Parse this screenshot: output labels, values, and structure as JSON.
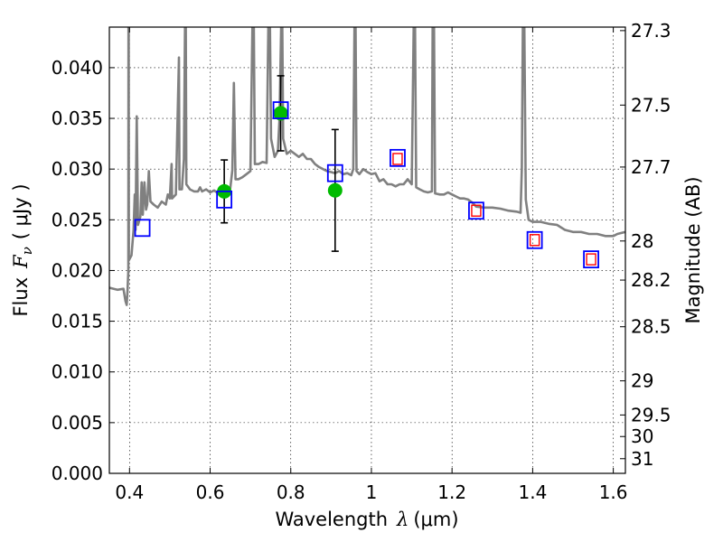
{
  "chart_data": {
    "type": "scatter",
    "xlabel": "Wavelength",
    "xlabel_symbol": "λ",
    "xlabel_unit": "(μm)",
    "ylabel": "Flux",
    "ylabel_symbol": "F",
    "ylabel_subscript": "ν",
    "ylabel_unit": "( μJy )",
    "y2label": "Magnitude (AB)",
    "xlim": [
      0.35,
      1.63
    ],
    "ylim": [
      0.0,
      0.044
    ],
    "grid": true,
    "x_ticks": [
      {
        "value": 0.4,
        "label": "0.4"
      },
      {
        "value": 0.6,
        "label": "0.6"
      },
      {
        "value": 0.8,
        "label": "0.8"
      },
      {
        "value": 1.0,
        "label": "1"
      },
      {
        "value": 1.2,
        "label": "1.2"
      },
      {
        "value": 1.4,
        "label": "1.4"
      },
      {
        "value": 1.6,
        "label": "1.6"
      }
    ],
    "y_ticks": [
      {
        "value": 0.0,
        "label": "0.000"
      },
      {
        "value": 0.005,
        "label": "0.005"
      },
      {
        "value": 0.01,
        "label": "0.010"
      },
      {
        "value": 0.015,
        "label": "0.015"
      },
      {
        "value": 0.02,
        "label": "0.020"
      },
      {
        "value": 0.025,
        "label": "0.025"
      },
      {
        "value": 0.03,
        "label": "0.030"
      },
      {
        "value": 0.035,
        "label": "0.035"
      },
      {
        "value": 0.04,
        "label": "0.040"
      }
    ],
    "y2_ticks": [
      {
        "mag": 27.3,
        "label": "27.3"
      },
      {
        "mag": 27.5,
        "label": "27.5"
      },
      {
        "mag": 27.7,
        "label": "27.7"
      },
      {
        "mag": 28.0,
        "label": "28"
      },
      {
        "mag": 28.2,
        "label": "28.2"
      },
      {
        "mag": 28.5,
        "label": "28.5"
      },
      {
        "mag": 29.0,
        "label": "29"
      },
      {
        "mag": 29.5,
        "label": "29.5"
      },
      {
        "mag": 30.0,
        "label": "30"
      },
      {
        "mag": 31.0,
        "label": "31"
      }
    ],
    "model_spectrum": {
      "color": "#808080",
      "points": [
        [
          0.35,
          0.0183
        ],
        [
          0.37,
          0.0181
        ],
        [
          0.385,
          0.0182
        ],
        [
          0.39,
          0.017
        ],
        [
          0.393,
          0.0166
        ],
        [
          0.395,
          0.018
        ],
        [
          0.397,
          0.02
        ],
        [
          0.3975,
          0.046
        ],
        [
          0.398,
          0.046
        ],
        [
          0.3985,
          0.021
        ],
        [
          0.405,
          0.0215
        ],
        [
          0.41,
          0.024
        ],
        [
          0.413,
          0.0275
        ],
        [
          0.415,
          0.024
        ],
        [
          0.418,
          0.0352
        ],
        [
          0.421,
          0.0245
        ],
        [
          0.427,
          0.0253
        ],
        [
          0.43,
          0.0287
        ],
        [
          0.433,
          0.0255
        ],
        [
          0.437,
          0.0287
        ],
        [
          0.441,
          0.026
        ],
        [
          0.444,
          0.0265
        ],
        [
          0.448,
          0.0298
        ],
        [
          0.452,
          0.0268
        ],
        [
          0.46,
          0.0265
        ],
        [
          0.47,
          0.0262
        ],
        [
          0.48,
          0.0268
        ],
        [
          0.49,
          0.0265
        ],
        [
          0.495,
          0.0275
        ],
        [
          0.5,
          0.0271
        ],
        [
          0.5045,
          0.0305
        ],
        [
          0.5055,
          0.0271
        ],
        [
          0.515,
          0.0275
        ],
        [
          0.5225,
          0.041
        ],
        [
          0.524,
          0.028
        ],
        [
          0.53,
          0.028
        ],
        [
          0.535,
          0.031
        ],
        [
          0.538,
          0.046
        ],
        [
          0.5395,
          0.046
        ],
        [
          0.541,
          0.0285
        ],
        [
          0.55,
          0.028
        ],
        [
          0.56,
          0.0278
        ],
        [
          0.57,
          0.0278
        ],
        [
          0.575,
          0.0282
        ],
        [
          0.58,
          0.0278
        ],
        [
          0.59,
          0.028
        ],
        [
          0.6,
          0.0277
        ],
        [
          0.61,
          0.0279
        ],
        [
          0.62,
          0.0276
        ],
        [
          0.63,
          0.0278
        ],
        [
          0.64,
          0.0276
        ],
        [
          0.65,
          0.0281
        ],
        [
          0.655,
          0.0299
        ],
        [
          0.659,
          0.0385
        ],
        [
          0.663,
          0.029
        ],
        [
          0.67,
          0.029
        ],
        [
          0.68,
          0.0292
        ],
        [
          0.69,
          0.0295
        ],
        [
          0.7,
          0.0298
        ],
        [
          0.7055,
          0.046
        ],
        [
          0.708,
          0.046
        ],
        [
          0.711,
          0.0305
        ],
        [
          0.72,
          0.0305
        ],
        [
          0.73,
          0.0307
        ],
        [
          0.74,
          0.0306
        ],
        [
          0.745,
          0.046
        ],
        [
          0.748,
          0.046
        ],
        [
          0.751,
          0.033
        ],
        [
          0.76,
          0.0312
        ],
        [
          0.768,
          0.0318
        ],
        [
          0.772,
          0.035
        ],
        [
          0.777,
          0.046
        ],
        [
          0.7785,
          0.046
        ],
        [
          0.781,
          0.033
        ],
        [
          0.79,
          0.0315
        ],
        [
          0.8,
          0.0318
        ],
        [
          0.81,
          0.0315
        ],
        [
          0.82,
          0.0312
        ],
        [
          0.83,
          0.0315
        ],
        [
          0.84,
          0.031
        ],
        [
          0.85,
          0.031
        ],
        [
          0.86,
          0.0305
        ],
        [
          0.87,
          0.0302
        ],
        [
          0.88,
          0.03
        ],
        [
          0.89,
          0.0298
        ],
        [
          0.9,
          0.0297
        ],
        [
          0.91,
          0.0296
        ],
        [
          0.92,
          0.0298
        ],
        [
          0.93,
          0.0295
        ],
        [
          0.94,
          0.0296
        ],
        [
          0.95,
          0.0294
        ],
        [
          0.955,
          0.03
        ],
        [
          0.9585,
          0.046
        ],
        [
          0.9605,
          0.046
        ],
        [
          0.963,
          0.0298
        ],
        [
          0.97,
          0.0295
        ],
        [
          0.98,
          0.03
        ],
        [
          0.99,
          0.0297
        ],
        [
          1.0,
          0.0295
        ],
        [
          1.01,
          0.0296
        ],
        [
          1.02,
          0.0288
        ],
        [
          1.03,
          0.029
        ],
        [
          1.04,
          0.0285
        ],
        [
          1.05,
          0.0285
        ],
        [
          1.06,
          0.0283
        ],
        [
          1.07,
          0.0285
        ],
        [
          1.08,
          0.0285
        ],
        [
          1.09,
          0.029
        ],
        [
          1.1,
          0.0285
        ],
        [
          1.1055,
          0.046
        ],
        [
          1.108,
          0.046
        ],
        [
          1.111,
          0.0282
        ],
        [
          1.12,
          0.028
        ],
        [
          1.13,
          0.0278
        ],
        [
          1.14,
          0.0277
        ],
        [
          1.15,
          0.0278
        ],
        [
          1.152,
          0.046
        ],
        [
          1.155,
          0.046
        ],
        [
          1.158,
          0.0276
        ],
        [
          1.17,
          0.0275
        ],
        [
          1.18,
          0.0275
        ],
        [
          1.19,
          0.0277
        ],
        [
          1.2,
          0.0275
        ],
        [
          1.21,
          0.0273
        ],
        [
          1.22,
          0.0271
        ],
        [
          1.23,
          0.0271
        ],
        [
          1.24,
          0.027
        ],
        [
          1.25,
          0.0267
        ],
        [
          1.26,
          0.0263
        ],
        [
          1.28,
          0.0262
        ],
        [
          1.3,
          0.0262
        ],
        [
          1.32,
          0.0261
        ],
        [
          1.34,
          0.0259
        ],
        [
          1.36,
          0.0258
        ],
        [
          1.37,
          0.0257
        ],
        [
          1.373,
          0.03
        ],
        [
          1.376,
          0.046
        ],
        [
          1.379,
          0.046
        ],
        [
          1.383,
          0.027
        ],
        [
          1.39,
          0.025
        ],
        [
          1.4,
          0.0248
        ],
        [
          1.42,
          0.0248
        ],
        [
          1.44,
          0.0246
        ],
        [
          1.46,
          0.0245
        ],
        [
          1.48,
          0.024
        ],
        [
          1.5,
          0.0238
        ],
        [
          1.52,
          0.0238
        ],
        [
          1.54,
          0.0236
        ],
        [
          1.56,
          0.0236
        ],
        [
          1.58,
          0.0234
        ],
        [
          1.6,
          0.0234
        ],
        [
          1.61,
          0.0236
        ],
        [
          1.63,
          0.0238
        ]
      ]
    },
    "observed": {
      "color": "#00bb00",
      "points": [
        {
          "x": 0.635,
          "y": 0.0278,
          "yerr": [
            0.0031,
            0.0031
          ]
        },
        {
          "x": 0.775,
          "y": 0.0355,
          "yerr": [
            0.0037,
            0.0037
          ]
        },
        {
          "x": 0.91,
          "y": 0.0279,
          "yerr": [
            0.006,
            0.006
          ]
        }
      ]
    },
    "model_photometry": {
      "color": "#0000ff",
      "points": [
        {
          "x": 0.432,
          "y": 0.0242
        },
        {
          "x": 0.635,
          "y": 0.027
        },
        {
          "x": 0.775,
          "y": 0.0358
        },
        {
          "x": 0.91,
          "y": 0.0296
        },
        {
          "x": 1.065,
          "y": 0.0311
        },
        {
          "x": 1.26,
          "y": 0.0259
        },
        {
          "x": 1.405,
          "y": 0.023
        },
        {
          "x": 1.545,
          "y": 0.0211
        }
      ]
    },
    "predicted": {
      "color": "#ff0000",
      "points": [
        {
          "x": 1.065,
          "y": 0.031
        },
        {
          "x": 1.26,
          "y": 0.0259
        },
        {
          "x": 1.405,
          "y": 0.023
        },
        {
          "x": 1.545,
          "y": 0.0211
        }
      ]
    }
  }
}
